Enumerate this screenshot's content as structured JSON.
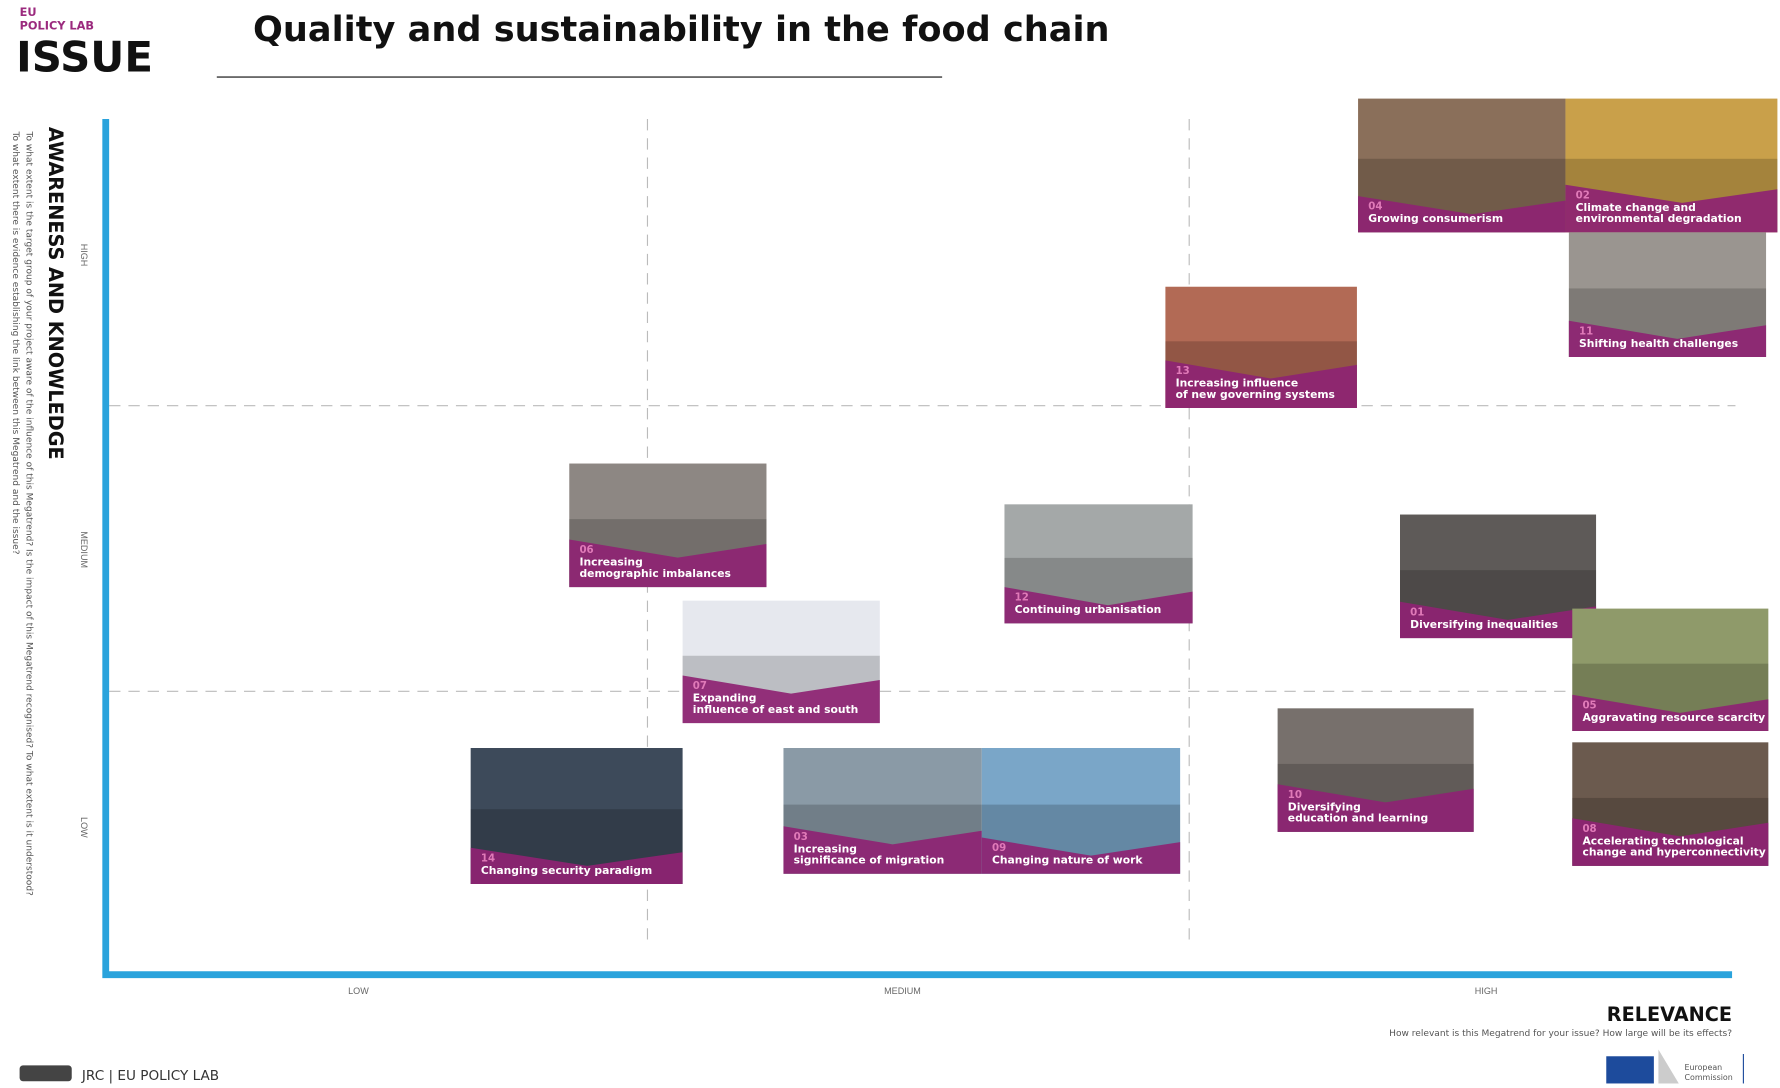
{
  "header": {
    "org_line1": "EU",
    "org_line2": "POLICY LAB",
    "section": "ISSUE",
    "title": "Quality and sustainability in the food chain"
  },
  "y_axis": {
    "title": "AWARENESS AND KNOWLEDGE",
    "question1": "To what extent is the target group of your project aware of the influence of this Megatrend? Is the impact of this Megatrend recognised? To what extent is it understood?",
    "question2": "To what extent there is evidence establishing the link between this Megatrend and the issue?",
    "ticks": [
      "HIGH",
      "MEDIUM",
      "LOW"
    ]
  },
  "x_axis": {
    "title": "RELEVANCE",
    "question": "How relevant is this Megatrend for your issue? How large will be its effects?",
    "ticks": [
      "LOW",
      "MEDIUM",
      "HIGH"
    ]
  },
  "cards": [
    {
      "number": "04",
      "label": [
        "Growing consumerism"
      ]
    },
    {
      "number": "02",
      "label": [
        "Climate change and",
        "environmental degradation"
      ]
    },
    {
      "number": "11",
      "label": [
        "Shifting health challenges"
      ]
    },
    {
      "number": "13",
      "label": [
        "Increasing influence",
        "of new governing systems"
      ]
    },
    {
      "number": "06",
      "label": [
        "Increasing",
        "demographic imbalances"
      ]
    },
    {
      "number": "12",
      "label": [
        "Continuing urbanisation"
      ]
    },
    {
      "number": "01",
      "label": [
        "Diversifying inequalities"
      ]
    },
    {
      "number": "07",
      "label": [
        "Expanding",
        "influence of east and south"
      ]
    },
    {
      "number": "05",
      "label": [
        "Aggravating resource scarcity"
      ]
    },
    {
      "number": "10",
      "label": [
        "Diversifying",
        "education and learning"
      ]
    },
    {
      "number": "08",
      "label": [
        "Accelerating technological",
        "change and hyperconnectivity"
      ]
    },
    {
      "number": "14",
      "label": [
        "Changing security paradigm"
      ]
    },
    {
      "number": "03",
      "label": [
        "Increasing",
        "significance of migration"
      ]
    },
    {
      "number": "09",
      "label": [
        "Changing nature of work"
      ]
    }
  ],
  "footer": {
    "credit": "JRC | EU POLICY LAB",
    "logo": [
      "European",
      "Commission"
    ]
  }
}
